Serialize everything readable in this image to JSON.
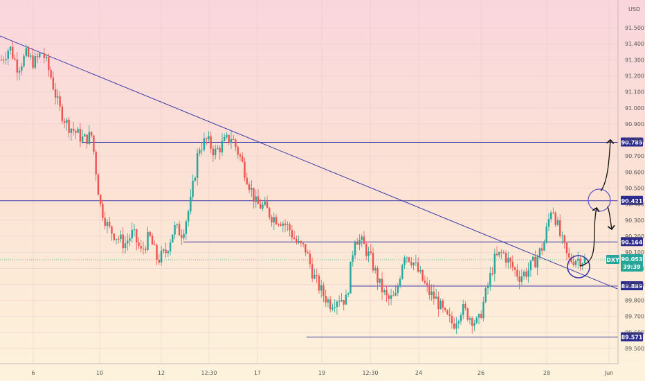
{
  "chart_data": {
    "type": "candlestick",
    "symbol": "DXY",
    "currency_label": "USD",
    "y_axis": {
      "range": [
        89.45,
        91.68
      ],
      "ticks": [
        "91.500",
        "91.400",
        "91.300",
        "91.200",
        "91.100",
        "91.000",
        "90.900",
        "90.800",
        "90.700",
        "90.600",
        "90.500",
        "90.400",
        "90.300",
        "90.200",
        "90.100",
        "90.000",
        "89.900",
        "89.800",
        "89.700",
        "89.600",
        "89.500"
      ]
    },
    "x_axis": {
      "ticks": [
        "6",
        "10",
        "12",
        "12:30",
        "17",
        "19",
        "12:30",
        "24",
        "26",
        "28",
        "Jun"
      ]
    },
    "horizontal_levels": [
      {
        "label": "90.785",
        "value": 90.785
      },
      {
        "label": "90.421",
        "value": 90.421
      },
      {
        "label": "90.164",
        "value": 90.164
      },
      {
        "label": "89.889",
        "value": 89.889
      },
      {
        "label": "89.571",
        "value": 89.571
      }
    ],
    "current_price": {
      "symbol": "DXY",
      "value": "90.053",
      "countdown": "39:39",
      "numeric": 90.053
    },
    "trendline": {
      "start": {
        "bar": 0,
        "value": 91.45
      },
      "end": {
        "bar": "end",
        "value": 89.9
      }
    },
    "price_path": [
      91.3,
      91.38,
      91.25,
      91.33,
      91.28,
      91.35,
      91.2,
      91.0,
      90.9,
      90.85,
      90.8,
      90.83,
      90.4,
      90.25,
      90.2,
      90.15,
      90.22,
      90.1,
      90.2,
      90.05,
      90.1,
      90.25,
      90.22,
      90.4,
      90.75,
      90.8,
      90.72,
      90.78,
      90.82,
      90.7,
      90.55,
      90.4,
      90.38,
      90.32,
      90.3,
      90.25,
      90.15,
      90.12,
      89.95,
      89.85,
      89.78,
      89.82,
      89.8,
      90.2,
      90.15,
      90.05,
      89.9,
      89.8,
      89.82,
      90.1,
      90.05,
      89.95,
      89.85,
      89.8,
      89.7,
      89.65,
      89.75,
      89.7,
      89.65,
      89.85,
      90.05,
      90.1,
      90.02,
      89.95,
      89.98,
      90.05,
      90.15,
      90.4,
      90.2,
      90.05,
      90.06,
      90.05
    ],
    "grid": true,
    "legend": "none"
  }
}
